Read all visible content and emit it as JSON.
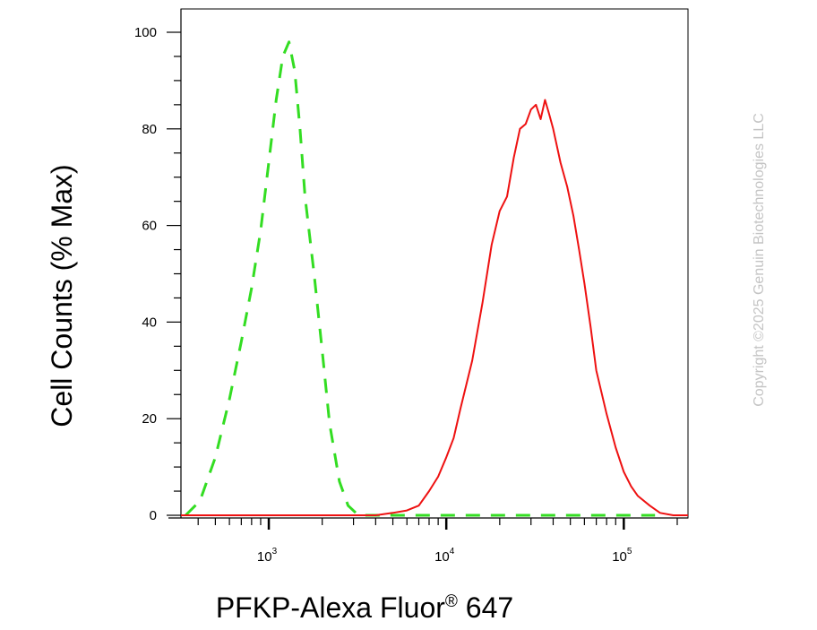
{
  "chart_data": {
    "type": "line",
    "xlabel": "PFKP-Alexa Fluor",
    "xlabel_sup": "®",
    "xlabel_suffix": " 647",
    "ylabel": "Cell Counts (% Max)",
    "x_scale": "log",
    "xlim": [
      320,
      230000
    ],
    "ylim": [
      0,
      103
    ],
    "x_ticks": [
      {
        "value": 1000,
        "base": "10",
        "exp": "3"
      },
      {
        "value": 10000,
        "base": "10",
        "exp": "4"
      },
      {
        "value": 100000,
        "base": "10",
        "exp": "5"
      }
    ],
    "y_ticks": [
      0,
      20,
      40,
      60,
      80,
      100
    ],
    "y_tick_labels": [
      "0",
      "20",
      "40",
      "60",
      "80",
      "100"
    ],
    "grid": false,
    "series": [
      {
        "color": "#33dd22",
        "style": "dashed",
        "x": [
          340,
          410,
          500,
          600,
          700,
          800,
          900,
          1000,
          1100,
          1200,
          1300,
          1400,
          1500,
          1600,
          1800,
          2000,
          2200,
          2500,
          2800,
          3200,
          4000,
          6000,
          10000,
          20000,
          50000,
          100000,
          150000
        ],
        "y": [
          0,
          3,
          12,
          24,
          36,
          47,
          59,
          73,
          86,
          95,
          98,
          92,
          80,
          66,
          50,
          34,
          19,
          7,
          2,
          0,
          0,
          0,
          0,
          0,
          0,
          0,
          0
        ]
      },
      {
        "color": "#ee1111",
        "style": "solid",
        "x": [
          320,
          1000,
          2000,
          3000,
          4000,
          5000,
          6000,
          7000,
          8000,
          9000,
          10000,
          11000,
          12000,
          14000,
          16000,
          18000,
          20000,
          22000,
          24000,
          26000,
          28000,
          30000,
          32000,
          34000,
          36000,
          38000,
          40000,
          44000,
          48000,
          52000,
          56000,
          60000,
          65000,
          70000,
          80000,
          90000,
          100000,
          110000,
          120000,
          140000,
          160000,
          190000,
          230000
        ],
        "y": [
          0,
          0,
          0,
          0,
          0,
          0.5,
          1,
          2,
          5,
          8,
          12,
          16,
          22,
          32,
          44,
          56,
          63,
          66,
          74,
          80,
          81,
          84,
          85,
          82,
          86,
          83,
          80,
          73,
          68,
          62,
          55,
          48,
          39,
          30,
          21,
          14,
          9,
          6,
          4,
          2,
          0.5,
          0,
          0
        ]
      }
    ]
  },
  "copyright": "Copyright ©2025 Genuin Biotechnologies LLC"
}
